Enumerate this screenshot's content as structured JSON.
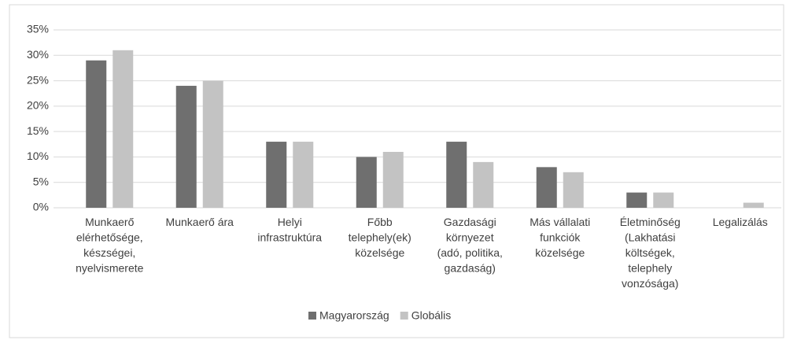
{
  "chart_data": {
    "type": "bar",
    "categories": [
      [
        "Munkaerő",
        "elérhetősége,",
        "készségei,",
        "nyelvismerete"
      ],
      [
        "Munkaerő ára"
      ],
      [
        "Helyi",
        "infrastruktúra"
      ],
      [
        "Főbb",
        "telephely(ek)",
        "közelsége"
      ],
      [
        "Gazdasági",
        "környezet",
        "(adó, politika,",
        "gazdaság)"
      ],
      [
        "Más vállalati",
        "funkciók",
        "közelsége"
      ],
      [
        "Életminőség",
        "(Lakhatási",
        "költségek,",
        "telephely",
        "vonzósága)"
      ],
      [
        "Legalizálás"
      ]
    ],
    "series": [
      {
        "name": "Magyarország",
        "color": "#6f6f6f",
        "values": [
          29,
          24,
          13,
          10,
          13,
          8,
          3,
          0
        ]
      },
      {
        "name": "Globális",
        "color": "#c3c3c3",
        "values": [
          31,
          25,
          13,
          11,
          9,
          7,
          3,
          1
        ]
      }
    ],
    "ylim": [
      0,
      35
    ],
    "yticks": [
      {
        "value": 0,
        "label": "0%"
      },
      {
        "value": 5,
        "label": "5%"
      },
      {
        "value": 10,
        "label": "10%"
      },
      {
        "value": 15,
        "label": "15%"
      },
      {
        "value": 20,
        "label": "20%"
      },
      {
        "value": 25,
        "label": "25%"
      },
      {
        "value": 30,
        "label": "30%"
      },
      {
        "value": 35,
        "label": "35%"
      }
    ],
    "grid": true,
    "legend": "bottom"
  }
}
